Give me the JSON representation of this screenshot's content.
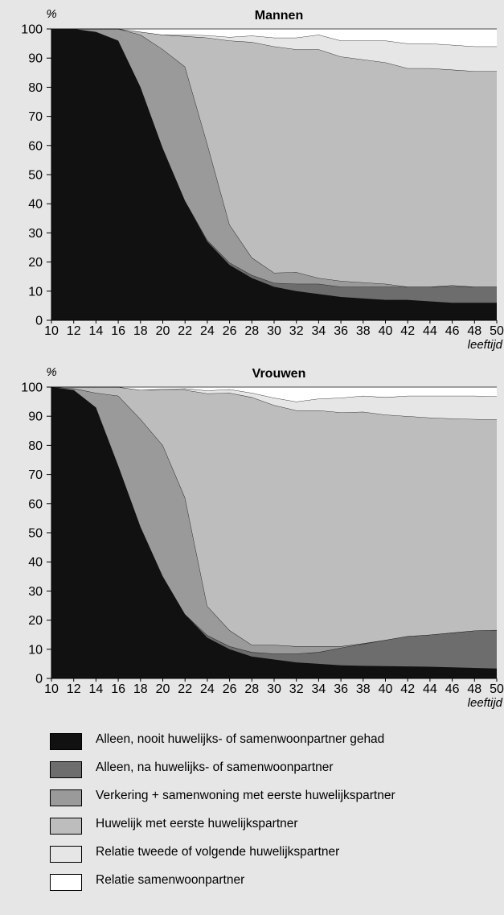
{
  "chart_data": [
    {
      "type": "area",
      "stacked": true,
      "title": "Mannen",
      "ylabel": "%",
      "xlabel": "leeftijd",
      "ylim": [
        0,
        100
      ],
      "xlim": [
        10,
        50
      ],
      "yticks": [
        0,
        10,
        20,
        30,
        40,
        50,
        60,
        70,
        80,
        90,
        100
      ],
      "xticks": [
        10,
        12,
        14,
        16,
        18,
        20,
        22,
        24,
        26,
        28,
        30,
        32,
        34,
        36,
        38,
        40,
        42,
        44,
        46,
        48,
        50
      ],
      "x": [
        10,
        12,
        14,
        16,
        18,
        20,
        22,
        24,
        26,
        28,
        30,
        32,
        34,
        36,
        38,
        40,
        42,
        44,
        46,
        48,
        50
      ],
      "series": [
        {
          "name": "Alleen, nooit huwelijks- of samenwoonpartner gehad",
          "color": "#111111",
          "values": [
            100,
            100,
            99,
            96,
            80,
            59,
            41,
            27,
            19,
            14.5,
            11.5,
            10,
            9,
            8,
            7.5,
            7,
            7,
            6.5,
            6,
            6,
            6
          ]
        },
        {
          "name": "Alleen, na huwelijks- of samenwoonpartner",
          "color": "#6d6d6d",
          "values": [
            0,
            0,
            0,
            0,
            0,
            0,
            0,
            0.5,
            0.8,
            1,
            1.3,
            2.5,
            3.5,
            3.5,
            4,
            4.5,
            4.5,
            5,
            5.5,
            5.5,
            5.5
          ]
        },
        {
          "name": "Verkering + samenwoning met eerste huwelijkspartner",
          "color": "#9a9a9a",
          "values": [
            0,
            0,
            1,
            4,
            18,
            34,
            46,
            33,
            13,
            6,
            3.5,
            4,
            2,
            2,
            1.5,
            1,
            0,
            0,
            0.5,
            0,
            0
          ]
        },
        {
          "name": "Huwelijk met eerste huwelijkspartner",
          "color": "#bdbdbd",
          "values": [
            0,
            0,
            0,
            0,
            1,
            5,
            10.5,
            36.5,
            63.2,
            74,
            77.7,
            76.5,
            78.5,
            77,
            76.5,
            76,
            75,
            75,
            74,
            74,
            74
          ]
        },
        {
          "name": "Relatie tweede of volgende huwelijkspartner",
          "color": "#e6e6e6",
          "values": [
            0,
            0,
            0,
            0,
            0,
            0,
            0.5,
            0.8,
            1.2,
            2.2,
            3,
            4,
            5,
            5.5,
            6.5,
            7.5,
            8.5,
            8.5,
            8.5,
            8.5,
            8.5
          ]
        },
        {
          "name": "Relatie samenwoonpartner",
          "color": "#ffffff",
          "values": [
            0,
            0,
            0,
            0,
            1,
            2,
            2,
            2.2,
            2.8,
            2.3,
            3,
            3,
            2,
            4,
            4,
            4,
            5,
            5,
            5.5,
            6,
            6
          ]
        }
      ]
    },
    {
      "type": "area",
      "stacked": true,
      "title": "Vrouwen",
      "ylabel": "%",
      "xlabel": "leeftijd",
      "ylim": [
        0,
        100
      ],
      "xlim": [
        10,
        50
      ],
      "yticks": [
        0,
        10,
        20,
        30,
        40,
        50,
        60,
        70,
        80,
        90,
        100
      ],
      "xticks": [
        10,
        12,
        14,
        16,
        18,
        20,
        22,
        24,
        26,
        28,
        30,
        32,
        34,
        36,
        38,
        40,
        42,
        44,
        46,
        48,
        50
      ],
      "x": [
        10,
        12,
        14,
        16,
        18,
        20,
        22,
        24,
        26,
        28,
        30,
        32,
        34,
        36,
        38,
        40,
        42,
        44,
        46,
        48,
        50
      ],
      "series": [
        {
          "name": "Alleen, nooit huwelijks- of samenwoonpartner gehad",
          "color": "#111111",
          "values": [
            100,
            99,
            93,
            73,
            52,
            35,
            22,
            14,
            10,
            7.5,
            6.5,
            5.5,
            5,
            4.5,
            4.3,
            4.2,
            4.1,
            4,
            3.8,
            3.6,
            3.4
          ]
        },
        {
          "name": "Alleen, na huwelijks- of samenwoonpartner",
          "color": "#6d6d6d",
          "values": [
            0,
            0,
            0,
            0,
            0,
            0,
            0,
            0.8,
            1,
            1.5,
            2,
            3,
            4,
            6,
            7.5,
            9,
            10.4,
            11,
            11.9,
            12.8,
            13.2
          ]
        },
        {
          "name": "Verkering + samenwoning met eerste huwelijkspartner",
          "color": "#9a9a9a",
          "values": [
            0,
            0.5,
            5,
            24,
            37,
            45,
            40,
            10,
            5.5,
            2.5,
            3,
            2.5,
            2,
            0.5,
            0.2,
            0,
            0,
            0,
            0,
            0,
            0
          ]
        },
        {
          "name": "Huwelijk met eerste huwelijkspartner",
          "color": "#bdbdbd",
          "values": [
            0,
            0.5,
            2,
            3,
            10,
            19,
            37,
            73,
            81.5,
            85,
            82.3,
            81,
            81,
            80.3,
            79.5,
            77.3,
            75.5,
            74.5,
            73.5,
            72.6,
            72.2
          ]
        },
        {
          "name": "Relatie tweede of volgende huwelijkspartner",
          "color": "#e6e6e6",
          "values": [
            0,
            0,
            0,
            0,
            0,
            0.3,
            0.5,
            1,
            1.2,
            1.5,
            2.5,
            3,
            4,
            5,
            5.5,
            6,
            7,
            7.5,
            7.8,
            8,
            8
          ]
        },
        {
          "name": "Relatie samenwoonpartner",
          "color": "#ffffff",
          "values": [
            0,
            0,
            0,
            0,
            1,
            0.7,
            0.5,
            1.2,
            0.8,
            2,
            3.7,
            5,
            4,
            3.7,
            3,
            3.5,
            3,
            3,
            3,
            3,
            3.2
          ]
        }
      ]
    }
  ]
}
